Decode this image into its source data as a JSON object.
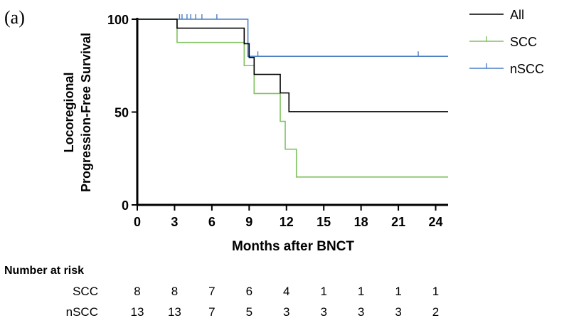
{
  "panel_label": "(a)",
  "chart_data": {
    "type": "line",
    "subtype": "kaplan-meier step survival curves",
    "title": "",
    "xlabel": "Months after BNCT",
    "ylabel_line1": "Locoregional",
    "ylabel_line2": "Progression-Free Survival",
    "xlim": [
      0,
      25
    ],
    "ylim": [
      0,
      100
    ],
    "xticks": [
      0,
      3,
      6,
      9,
      12,
      15,
      18,
      21,
      24
    ],
    "yticks": [
      0,
      50,
      100
    ],
    "grid": false,
    "legend_position": "top-right",
    "series": [
      {
        "name": "All",
        "color": "#000000",
        "steps": [
          [
            0,
            100
          ],
          [
            3.2,
            95.2
          ],
          [
            8.6,
            86.8
          ],
          [
            9.0,
            79.4
          ],
          [
            9.4,
            70.3
          ],
          [
            11.5,
            60.3
          ],
          [
            12.2,
            50.2
          ],
          [
            25,
            50.2
          ]
        ],
        "censor": []
      },
      {
        "name": "SCC",
        "color": "#7fc25e",
        "steps": [
          [
            0,
            100
          ],
          [
            3.2,
            87.5
          ],
          [
            8.6,
            75.0
          ],
          [
            9.4,
            60.0
          ],
          [
            11.5,
            45.0
          ],
          [
            11.9,
            30.0
          ],
          [
            12.8,
            15.0
          ],
          [
            25,
            15.0
          ]
        ],
        "censor": []
      },
      {
        "name": "nSCC",
        "color": "#4a7fc4",
        "steps": [
          [
            0,
            100
          ],
          [
            8.9,
            80.0
          ],
          [
            25,
            80.0
          ]
        ],
        "censor": [
          [
            3.4,
            100
          ],
          [
            3.6,
            100
          ],
          [
            4.0,
            100
          ],
          [
            4.3,
            100
          ],
          [
            4.7,
            100
          ],
          [
            5.2,
            100
          ],
          [
            6.4,
            100
          ],
          [
            9.7,
            80
          ],
          [
            22.6,
            80
          ]
        ]
      }
    ]
  },
  "risk_table": {
    "title": "Number at risk",
    "times": [
      0,
      3,
      6,
      9,
      12,
      15,
      18,
      21,
      24
    ],
    "rows": [
      {
        "label": "SCC",
        "values": [
          "8",
          "8",
          "7",
          "6",
          "4",
          "1",
          "1",
          "1",
          "1"
        ]
      },
      {
        "label": "nSCC",
        "values": [
          "13",
          "13",
          "7",
          "5",
          "3",
          "3",
          "3",
          "3",
          "2"
        ]
      }
    ]
  }
}
